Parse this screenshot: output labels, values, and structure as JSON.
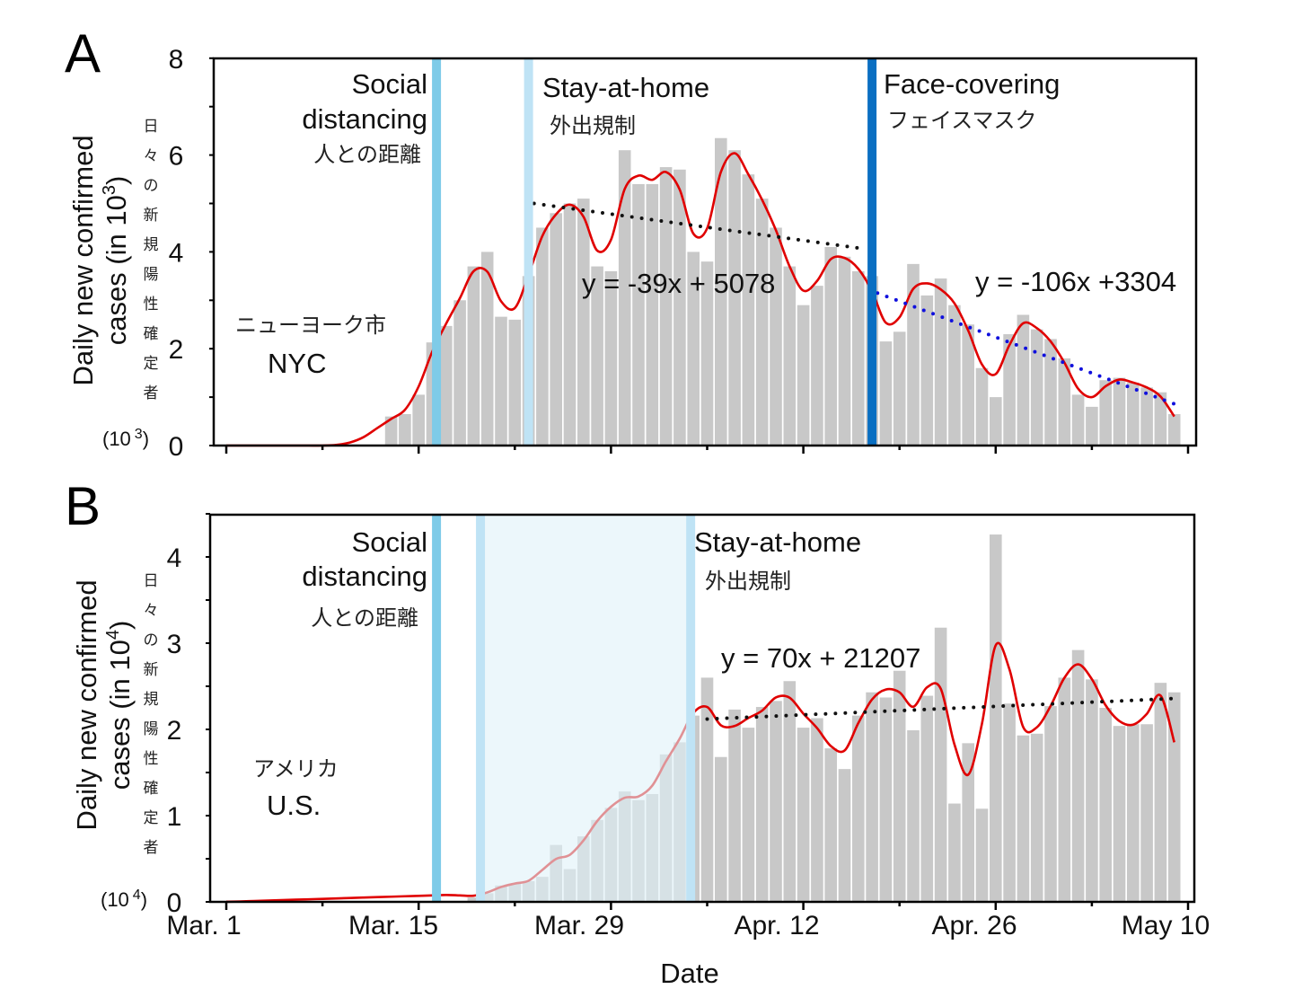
{
  "x_label": "Date",
  "x_tick_labels": [
    "Mar. 1",
    "Mar. 15",
    "Mar. 29",
    "Apr. 12",
    "Apr. 26",
    "May 10"
  ],
  "colors": {
    "bar": "#c8c8c8",
    "curve": "#e00000",
    "social": "#7ecbe8",
    "stay": "#bfe3f5",
    "face": "#0a6fc2",
    "region": "#dff1f8",
    "trend_black": "#111111",
    "trend_blue": "#1010dd"
  },
  "chart_data": [
    {
      "type": "bar",
      "panel": "A",
      "title": "NYC",
      "title_jp": "ニューヨーク市",
      "ylabel_line1": "Daily new confirmed",
      "ylabel_line2": "cases (in 10",
      "ylabel_exp": "3",
      "ylabel_close": ")",
      "ylabel_jp": [
        "日",
        "々",
        "の",
        "新",
        "規",
        "陽",
        "性",
        "確",
        "定",
        "者"
      ],
      "unit_label": "(10",
      "unit_exp": "3",
      "unit_close": ")",
      "ylim": [
        0,
        8
      ],
      "yticks": [
        "0",
        "2",
        "4",
        "6",
        "8"
      ],
      "x_start_day": 12,
      "values": [
        0.6,
        0.65,
        1.05,
        2.13,
        2.47,
        3.0,
        3.7,
        4.0,
        2.66,
        2.6,
        3.5,
        4.5,
        4.8,
        5.0,
        5.1,
        3.7,
        3.6,
        6.1,
        5.4,
        5.4,
        5.75,
        5.7,
        4.0,
        3.8,
        6.35,
        6.1,
        5.6,
        5.1,
        4.5,
        3.7,
        2.9,
        3.3,
        4.1,
        3.9,
        3.6,
        3.5,
        2.15,
        2.35,
        3.75,
        3.1,
        3.45,
        2.9,
        2.5,
        1.6,
        1.0,
        2.3,
        2.7,
        2.4,
        2.2,
        1.8,
        1.05,
        0.8,
        1.35,
        1.4,
        1.3,
        1.2,
        1.1,
        0.65
      ],
      "interventions": [
        {
          "label_1": "Social",
          "label_2": "distancing",
          "label_jp": "人との距離",
          "day": 15.3,
          "color_key": "social"
        },
        {
          "label_1": "Stay-at-home",
          "label_jp": "外出規制",
          "day": 22,
          "color_key": "stay"
        },
        {
          "label_1": "Face-covering",
          "label_jp": "フェイスマスク",
          "day": 47,
          "color_key": "face"
        }
      ],
      "trends": [
        {
          "equation": "y = -39x + 5078",
          "from_day": 22.4,
          "to_day": 46.4,
          "slope_per_day": -0.039,
          "start": 5.0,
          "color_key": "trend_black"
        },
        {
          "equation": "y = -106x +3304",
          "from_day": 47.4,
          "to_day": 69,
          "slope_per_day": -0.106,
          "start": 3.15,
          "color_key": "trend_blue"
        }
      ]
    },
    {
      "type": "bar",
      "panel": "B",
      "title": "U.S.",
      "title_jp": "アメリカ",
      "ylabel_line1": "Daily new confirmed",
      "ylabel_line2": "cases (in 10",
      "ylabel_exp": "4",
      "ylabel_close": ")",
      "ylabel_jp": [
        "日",
        "々",
        "の",
        "新",
        "規",
        "陽",
        "性",
        "確",
        "定",
        "者"
      ],
      "unit_label": "(10",
      "unit_exp": "4",
      "unit_close": ")",
      "ylim": [
        0,
        4.5
      ],
      "yticks": [
        "0",
        "1",
        "2",
        "3",
        "4"
      ],
      "x_start_day": 18,
      "values": [
        0.05,
        0.1,
        0.19,
        0.21,
        0.24,
        0.29,
        0.66,
        0.38,
        0.76,
        0.95,
        1.09,
        1.28,
        1.18,
        1.25,
        1.71,
        1.85,
        2.16,
        2.6,
        1.68,
        2.23,
        2.02,
        2.26,
        2.33,
        2.56,
        2.02,
        2.13,
        1.78,
        1.54,
        2.16,
        2.43,
        2.37,
        2.68,
        1.99,
        2.39,
        3.18,
        1.14,
        1.84,
        1.08,
        4.26,
        2.3,
        1.93,
        1.95,
        2.27,
        2.6,
        2.92,
        2.58,
        2.25,
        2.04,
        2.06,
        2.06,
        2.54,
        2.43
      ],
      "interventions": [
        {
          "label_1": "Social",
          "label_2": "distancing",
          "label_jp": "人との距離",
          "day": 15.3,
          "color_key": "social"
        },
        {
          "label_1": "Stay-at-home",
          "label_jp": "外出規制",
          "day_from": 18.5,
          "day_to": 33.8,
          "color_key": "stay"
        }
      ],
      "trends": [
        {
          "equation": "y = 70x + 21207",
          "from_day": 35,
          "to_day": 69,
          "slope_per_day": 0.007,
          "start": 2.12,
          "color_key": "trend_black"
        }
      ]
    }
  ]
}
